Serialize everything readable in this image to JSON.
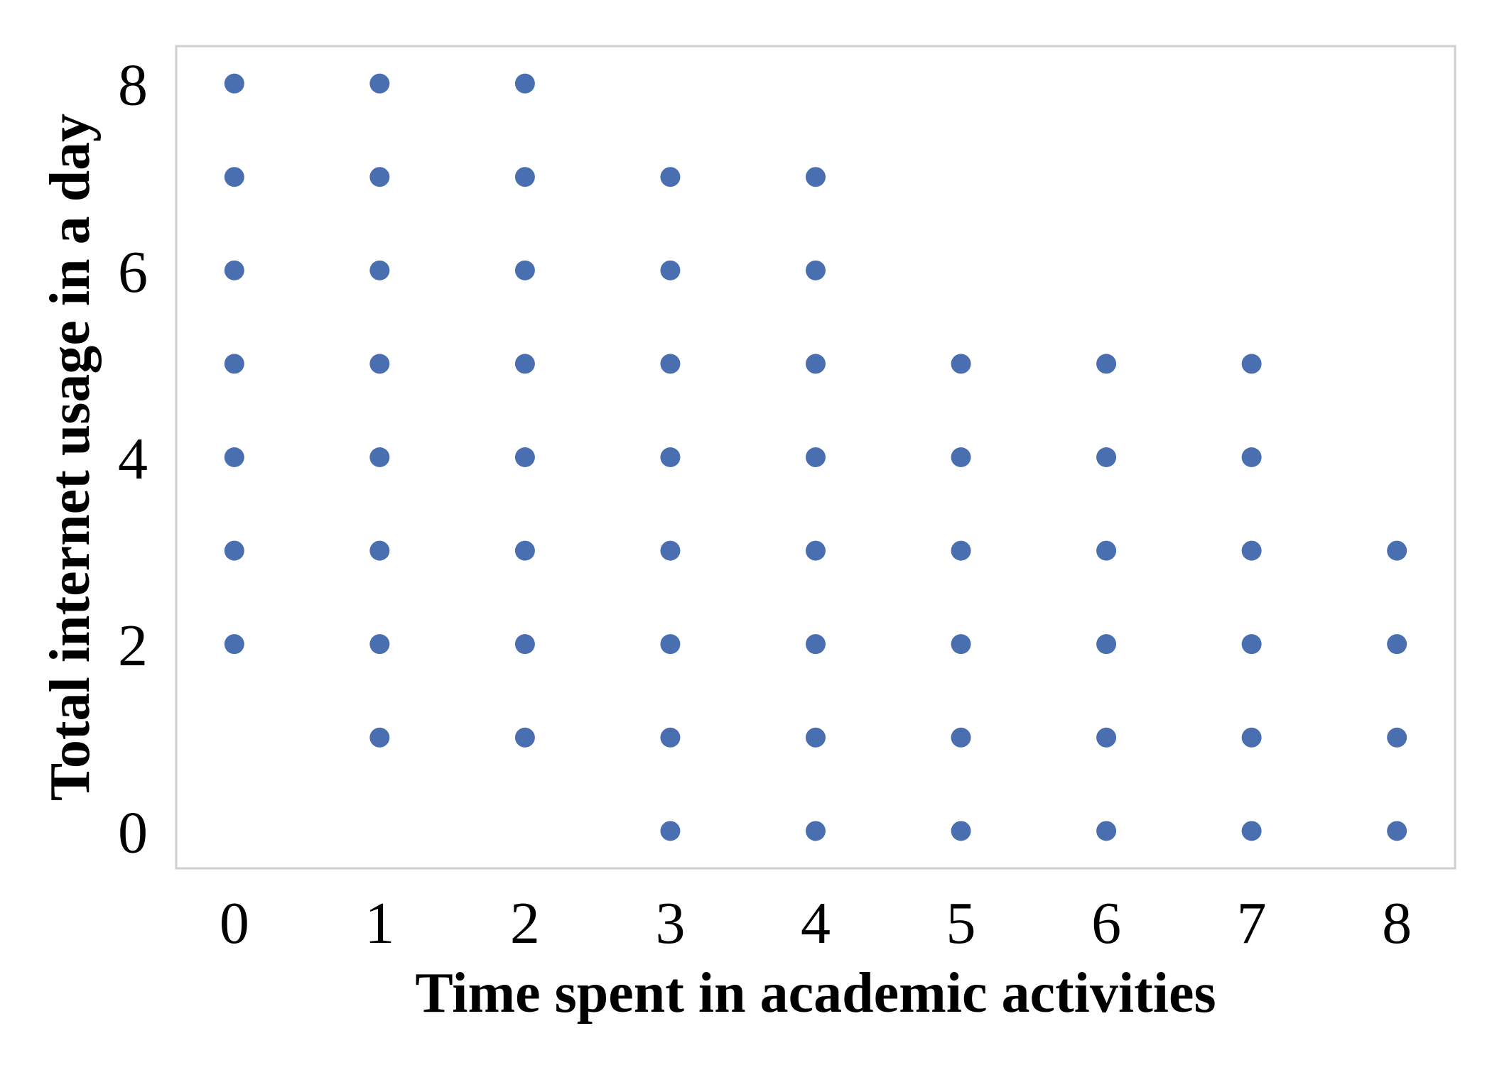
{
  "chart_data": {
    "type": "scatter",
    "title": "",
    "xlabel": "Time spent in academic activities",
    "ylabel": "Total internet usage in a day",
    "xlim": [
      -0.4,
      8.4
    ],
    "ylim": [
      -0.4,
      8.4
    ],
    "xticks": [
      "0",
      "1",
      "2",
      "3",
      "4",
      "5",
      "6",
      "7",
      "8"
    ],
    "yticks": [
      "0",
      "2",
      "4",
      "6",
      "8"
    ],
    "ytick_values": [
      0,
      2,
      4,
      6,
      8
    ],
    "grid": false,
    "legend": "none",
    "marker_color": "#4a6fb1",
    "frame_color": "#cfcfcf",
    "points": [
      {
        "x": 0,
        "y": 8
      },
      {
        "x": 0,
        "y": 7
      },
      {
        "x": 0,
        "y": 6
      },
      {
        "x": 0,
        "y": 5
      },
      {
        "x": 0,
        "y": 4
      },
      {
        "x": 0,
        "y": 3
      },
      {
        "x": 0,
        "y": 2
      },
      {
        "x": 1,
        "y": 8
      },
      {
        "x": 1,
        "y": 7
      },
      {
        "x": 1,
        "y": 6
      },
      {
        "x": 1,
        "y": 5
      },
      {
        "x": 1,
        "y": 4
      },
      {
        "x": 1,
        "y": 3
      },
      {
        "x": 1,
        "y": 2
      },
      {
        "x": 1,
        "y": 1
      },
      {
        "x": 2,
        "y": 8
      },
      {
        "x": 2,
        "y": 7
      },
      {
        "x": 2,
        "y": 6
      },
      {
        "x": 2,
        "y": 5
      },
      {
        "x": 2,
        "y": 4
      },
      {
        "x": 2,
        "y": 3
      },
      {
        "x": 2,
        "y": 2
      },
      {
        "x": 2,
        "y": 1
      },
      {
        "x": 3,
        "y": 7
      },
      {
        "x": 3,
        "y": 6
      },
      {
        "x": 3,
        "y": 5
      },
      {
        "x": 3,
        "y": 4
      },
      {
        "x": 3,
        "y": 3
      },
      {
        "x": 3,
        "y": 2
      },
      {
        "x": 3,
        "y": 1
      },
      {
        "x": 3,
        "y": 0
      },
      {
        "x": 4,
        "y": 7
      },
      {
        "x": 4,
        "y": 6
      },
      {
        "x": 4,
        "y": 5
      },
      {
        "x": 4,
        "y": 4
      },
      {
        "x": 4,
        "y": 3
      },
      {
        "x": 4,
        "y": 2
      },
      {
        "x": 4,
        "y": 1
      },
      {
        "x": 4,
        "y": 0
      },
      {
        "x": 5,
        "y": 5
      },
      {
        "x": 5,
        "y": 4
      },
      {
        "x": 5,
        "y": 3
      },
      {
        "x": 5,
        "y": 2
      },
      {
        "x": 5,
        "y": 1
      },
      {
        "x": 5,
        "y": 0
      },
      {
        "x": 6,
        "y": 5
      },
      {
        "x": 6,
        "y": 4
      },
      {
        "x": 6,
        "y": 3
      },
      {
        "x": 6,
        "y": 2
      },
      {
        "x": 6,
        "y": 1
      },
      {
        "x": 6,
        "y": 0
      },
      {
        "x": 7,
        "y": 5
      },
      {
        "x": 7,
        "y": 4
      },
      {
        "x": 7,
        "y": 3
      },
      {
        "x": 7,
        "y": 2
      },
      {
        "x": 7,
        "y": 1
      },
      {
        "x": 7,
        "y": 0
      },
      {
        "x": 8,
        "y": 3
      },
      {
        "x": 8,
        "y": 2
      },
      {
        "x": 8,
        "y": 1
      },
      {
        "x": 8,
        "y": 0
      }
    ]
  }
}
